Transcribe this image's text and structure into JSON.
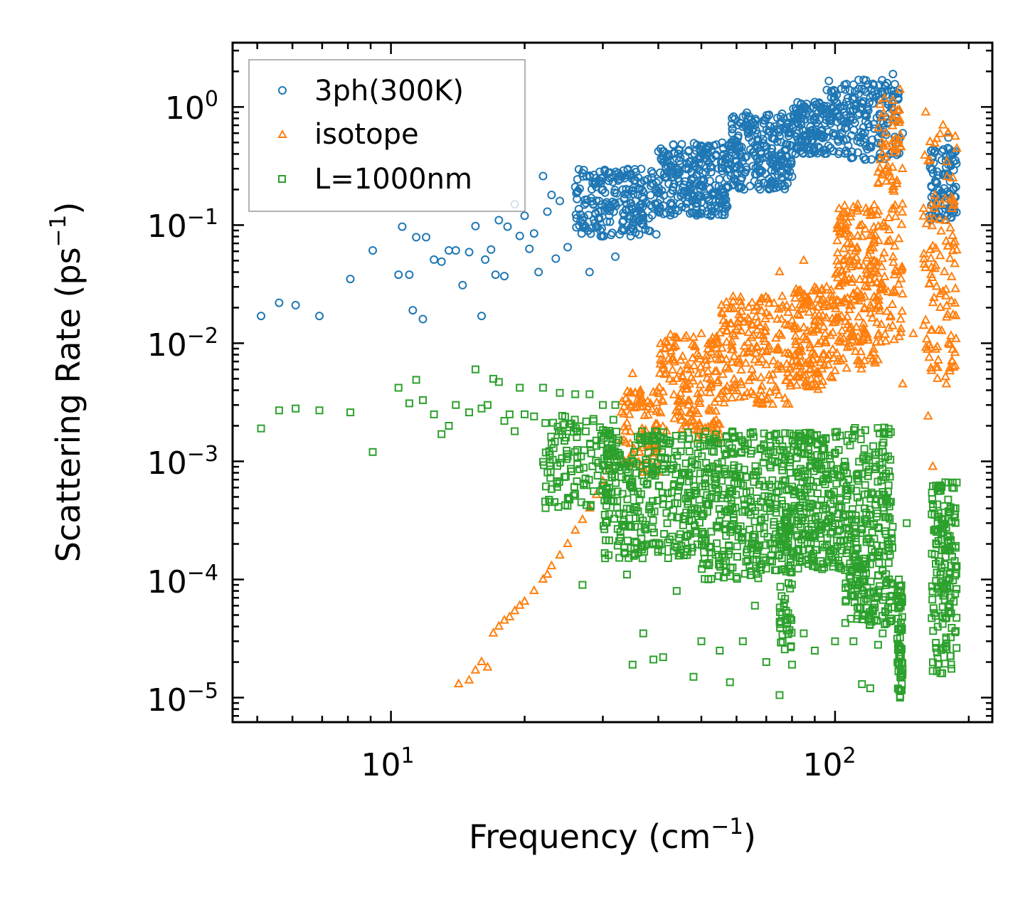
{
  "chart_data": {
    "type": "scatter",
    "xscale": "log",
    "yscale": "log",
    "xlabel": "Frequency (cm",
    "xlabel_sup": "−1",
    "xlabel_end": ")",
    "ylabel": "Scattering Rate (ps",
    "ylabel_sup": "−1",
    "ylabel_end": ")",
    "xlim": [
      4.4,
      226
    ],
    "ylim": [
      6.2e-06,
      3.5
    ],
    "x_ticks": [
      {
        "value": 10,
        "base": "10",
        "exp": "1"
      },
      {
        "value": 100,
        "base": "10",
        "exp": "2"
      }
    ],
    "y_ticks": [
      {
        "value": 1,
        "base": "10",
        "exp": "0"
      },
      {
        "value": 0.1,
        "base": "10",
        "exp": "−1"
      },
      {
        "value": 0.01,
        "base": "10",
        "exp": "−2"
      },
      {
        "value": 0.001,
        "base": "10",
        "exp": "−3"
      },
      {
        "value": 0.0001,
        "base": "10",
        "exp": "−4"
      },
      {
        "value": 1e-05,
        "base": "10",
        "exp": "−5"
      }
    ],
    "legend_position": "top-left",
    "series": [
      {
        "name": "3ph(300K)",
        "marker": "circle",
        "color": "#1f77b4",
        "points": [
          [
            5.1,
            0.017
          ],
          [
            5.6,
            0.022
          ],
          [
            6.1,
            0.021
          ],
          [
            6.9,
            0.017
          ],
          [
            8.1,
            0.035
          ],
          [
            9.1,
            0.061
          ],
          [
            10.4,
            0.038
          ],
          [
            10.6,
            0.097
          ],
          [
            11.0,
            0.038
          ],
          [
            11.2,
            0.019
          ],
          [
            11.4,
            0.079
          ],
          [
            11.8,
            0.016
          ],
          [
            12.0,
            0.079
          ],
          [
            12.5,
            0.051
          ],
          [
            13.0,
            0.049
          ],
          [
            13.5,
            0.061
          ],
          [
            14.0,
            0.061
          ],
          [
            14.5,
            0.031
          ],
          [
            15.0,
            0.059
          ],
          [
            15.5,
            0.098
          ],
          [
            16.0,
            0.017
          ],
          [
            16.3,
            0.051
          ],
          [
            16.8,
            0.062
          ],
          [
            17.2,
            0.038
          ],
          [
            17.5,
            0.11
          ],
          [
            18.0,
            0.037
          ],
          [
            18.3,
            0.097
          ],
          [
            19.0,
            0.15
          ],
          [
            19.5,
            0.081
          ],
          [
            20.0,
            0.12
          ],
          [
            20.5,
            0.063
          ],
          [
            21.0,
            0.085
          ],
          [
            21.5,
            0.04
          ],
          [
            22.0,
            0.26
          ],
          [
            22.5,
            0.13
          ],
          [
            23.0,
            0.18
          ],
          [
            23.5,
            0.052
          ],
          [
            24.0,
            0.16
          ],
          [
            25.0,
            0.065
          ],
          [
            26.0,
            0.21
          ],
          [
            27.0,
            0.11
          ],
          [
            28.0,
            0.04
          ],
          [
            29.0,
            0.25
          ],
          [
            30.0,
            0.2
          ],
          [
            31.0,
            0.12
          ],
          [
            32.0,
            0.054
          ],
          [
            33.0,
            0.26
          ],
          [
            34.0,
            0.15
          ],
          [
            35.0,
            0.1
          ],
          [
            36.0,
            0.18
          ],
          [
            37.0,
            0.11
          ],
          [
            38.0,
            0.09
          ],
          [
            39.0,
            0.22
          ],
          [
            40.0,
            0.42
          ],
          [
            42.0,
            0.28
          ],
          [
            44.0,
            0.3
          ],
          [
            46.0,
            0.38
          ],
          [
            48.0,
            0.25
          ],
          [
            50.0,
            0.47
          ],
          [
            52.0,
            0.16
          ],
          [
            54.0,
            0.48
          ],
          [
            56.0,
            0.45
          ],
          [
            58.0,
            0.3
          ],
          [
            60.0,
            0.31
          ],
          [
            62.0,
            0.68
          ],
          [
            64.0,
            0.55
          ],
          [
            66.0,
            0.7
          ],
          [
            68.0,
            0.42
          ],
          [
            70.0,
            0.8
          ],
          [
            72.0,
            0.36
          ],
          [
            74.0,
            0.65
          ],
          [
            76.0,
            0.25
          ],
          [
            78.0,
            0.48
          ],
          [
            80.0,
            0.7
          ],
          [
            82.0,
            0.56
          ],
          [
            85.0,
            0.57
          ],
          [
            88.0,
            0.68
          ],
          [
            90.0,
            1.1
          ],
          [
            93.0,
            0.95
          ],
          [
            96.0,
            0.88
          ],
          [
            100.0,
            0.92
          ],
          [
            103.0,
            0.78
          ],
          [
            106.0,
            0.85
          ],
          [
            110.0,
            0.95
          ],
          [
            113.0,
            0.55
          ],
          [
            116.0,
            1.4
          ],
          [
            120.0,
            1.2
          ],
          [
            125.0,
            1.3
          ],
          [
            130.0,
            1.5
          ],
          [
            135.0,
            1.9
          ],
          [
            140.0,
            0.55
          ],
          [
            142.0,
            0.6
          ],
          [
            165.0,
            0.21
          ],
          [
            170.0,
            0.2
          ],
          [
            175.0,
            0.18
          ],
          [
            180.0,
            0.55
          ],
          [
            185.0,
            0.15
          ]
        ],
        "clusters": [
          {
            "x": [
              26,
              40
            ],
            "y": [
              0.08,
              0.3
            ],
            "n": 220
          },
          {
            "x": [
              40,
              58
            ],
            "y": [
              0.12,
              0.5
            ],
            "n": 260
          },
          {
            "x": [
              58,
              80
            ],
            "y": [
              0.2,
              0.9
            ],
            "n": 240
          },
          {
            "x": [
              80,
              95
            ],
            "y": [
              0.4,
              1.1
            ],
            "n": 120
          },
          {
            "x": [
              95,
              140
            ],
            "y": [
              0.35,
              1.7
            ],
            "n": 220
          },
          {
            "x": [
              163,
              188
            ],
            "y": [
              0.11,
              0.45
            ],
            "n": 90
          }
        ]
      },
      {
        "name": "isotope",
        "marker": "triangle",
        "color": "#ff7f0e",
        "points": [
          [
            14.2,
            1.3e-05
          ],
          [
            15.0,
            1.4e-05
          ],
          [
            15.5,
            1.7e-05
          ],
          [
            16.0,
            2e-05
          ],
          [
            16.5,
            1.8e-05
          ],
          [
            17.0,
            3.5e-05
          ],
          [
            17.5,
            4e-05
          ],
          [
            18.0,
            4.5e-05
          ],
          [
            18.5,
            4.8e-05
          ],
          [
            19.0,
            5.4e-05
          ],
          [
            19.5,
            6e-05
          ],
          [
            20.0,
            6.5e-05
          ],
          [
            21.0,
            8e-05
          ],
          [
            22.0,
            0.0001
          ],
          [
            22.5,
            0.00011
          ],
          [
            23.0,
            0.00013
          ],
          [
            24.0,
            0.00016
          ],
          [
            25.0,
            0.0002
          ],
          [
            26.0,
            0.00026
          ],
          [
            27.0,
            0.00032
          ],
          [
            28.0,
            0.0004
          ],
          [
            29.0,
            0.00052
          ],
          [
            30.0,
            0.00068
          ],
          [
            31.0,
            0.00085
          ],
          [
            32.0,
            0.0011
          ],
          [
            33.0,
            0.0015
          ],
          [
            34.0,
            0.0021
          ],
          [
            35.0,
            0.0055
          ],
          [
            37.0,
            0.0013
          ],
          [
            39.0,
            0.0011
          ],
          [
            41.0,
            0.0032
          ],
          [
            44.0,
            0.005
          ],
          [
            47.0,
            0.0045
          ],
          [
            50.0,
            0.012
          ],
          [
            55.0,
            0.008
          ],
          [
            60.0,
            0.013
          ],
          [
            65.0,
            0.009
          ],
          [
            70.0,
            0.018
          ],
          [
            75.0,
            0.04
          ],
          [
            80.0,
            0.02
          ],
          [
            85.0,
            0.05
          ],
          [
            90.0,
            0.008
          ],
          [
            95.0,
            0.012
          ],
          [
            100.0,
            0.015
          ],
          [
            105.0,
            0.035
          ],
          [
            110.0,
            0.05
          ],
          [
            115.0,
            0.1
          ],
          [
            120.0,
            0.12
          ],
          [
            125.0,
            0.28
          ],
          [
            130.0,
            0.6
          ],
          [
            135.0,
            0.2
          ],
          [
            140.0,
            1.4
          ],
          [
            142.0,
            0.0045
          ],
          [
            150.0,
            0.012
          ],
          [
            160.0,
            0.9
          ],
          [
            162.0,
            0.0024
          ],
          [
            166.0,
            0.0009
          ],
          [
            170.0,
            0.005
          ],
          [
            175.0,
            0.7
          ],
          [
            178.0,
            0.0045
          ],
          [
            180.0,
            0.6
          ],
          [
            185.0,
            0.15
          ],
          [
            187.0,
            0.017
          ]
        ],
        "clusters": [
          {
            "x": [
              33,
              40
            ],
            "y": [
              0.0008,
              0.004
            ],
            "n": 80
          },
          {
            "x": [
              40,
              55
            ],
            "y": [
              0.0015,
              0.012
            ],
            "n": 160
          },
          {
            "x": [
              55,
              80
            ],
            "y": [
              0.003,
              0.025
            ],
            "n": 180
          },
          {
            "x": [
              80,
              100
            ],
            "y": [
              0.004,
              0.03
            ],
            "n": 150
          },
          {
            "x": [
              100,
              125
            ],
            "y": [
              0.006,
              0.15
            ],
            "n": 200
          },
          {
            "x": [
              125,
              142
            ],
            "y": [
              0.01,
              1.2
            ],
            "n": 120
          },
          {
            "x": [
              158,
              188
            ],
            "y": [
              0.005,
              0.6
            ],
            "n": 110
          }
        ]
      },
      {
        "name": "L=1000nm",
        "marker": "square",
        "color": "#2ca02c",
        "points": [
          [
            5.1,
            0.0019
          ],
          [
            5.6,
            0.0027
          ],
          [
            6.1,
            0.0028
          ],
          [
            6.9,
            0.0027
          ],
          [
            8.1,
            0.0026
          ],
          [
            9.1,
            0.0012
          ],
          [
            10.4,
            0.0042
          ],
          [
            11.0,
            0.0031
          ],
          [
            11.4,
            0.0049
          ],
          [
            11.8,
            0.0033
          ],
          [
            12.5,
            0.0025
          ],
          [
            13.0,
            0.0017
          ],
          [
            13.5,
            0.002
          ],
          [
            14.0,
            0.003
          ],
          [
            15.0,
            0.0026
          ],
          [
            15.5,
            0.006
          ],
          [
            16.0,
            0.0028
          ],
          [
            16.5,
            0.003
          ],
          [
            17.0,
            0.005
          ],
          [
            17.5,
            0.0047
          ],
          [
            18.0,
            0.0022
          ],
          [
            18.5,
            0.0025
          ],
          [
            19.0,
            0.0018
          ],
          [
            19.5,
            0.0042
          ],
          [
            20.0,
            0.0025
          ],
          [
            21.0,
            0.0024
          ],
          [
            22.0,
            0.0042
          ],
          [
            23.0,
            0.0014
          ],
          [
            24.0,
            0.0038
          ],
          [
            25.0,
            0.0011
          ],
          [
            26.0,
            0.0037
          ],
          [
            27.0,
            9e-05
          ],
          [
            28.0,
            0.0037
          ],
          [
            29.0,
            0.0015
          ],
          [
            30.0,
            0.003
          ],
          [
            31.0,
            0.0006
          ],
          [
            32.0,
            0.003
          ],
          [
            34.0,
            0.00011
          ],
          [
            35.0,
            1.9e-05
          ],
          [
            37.0,
            3.5e-05
          ],
          [
            39.0,
            2.1e-05
          ],
          [
            41.0,
            2.2e-05
          ],
          [
            44.0,
            8e-05
          ],
          [
            48.0,
            1.5e-05
          ],
          [
            50.0,
            3e-05
          ],
          [
            55.0,
            2.5e-05
          ],
          [
            58.0,
            1.35e-05
          ],
          [
            62.0,
            3e-05
          ],
          [
            66.0,
            6e-05
          ],
          [
            70.0,
            2e-05
          ],
          [
            75.0,
            1.05e-05
          ],
          [
            80.0,
            1.9e-05
          ],
          [
            85.0,
            3.5e-05
          ],
          [
            90.0,
            2.5e-05
          ],
          [
            100.0,
            3e-05
          ],
          [
            110.0,
            3e-05
          ],
          [
            115.0,
            1.3e-05
          ],
          [
            120.0,
            1.2e-05
          ],
          [
            125.0,
            2.8e-05
          ],
          [
            128.0,
            3.5e-05
          ],
          [
            132.0,
            0.0017
          ],
          [
            140.0,
            1e-05
          ],
          [
            145.0,
            0.0003
          ]
        ],
        "clusters": [
          {
            "x": [
              22,
              33
            ],
            "y": [
              0.0004,
              0.0025
            ],
            "n": 130
          },
          {
            "x": [
              30,
              50
            ],
            "y": [
              0.00015,
              0.0018
            ],
            "n": 320
          },
          {
            "x": [
              50,
              80
            ],
            "y": [
              0.0001,
              0.0018
            ],
            "n": 380
          },
          {
            "x": [
              75,
              80
            ],
            "y": [
              2.5e-05,
              0.0003
            ],
            "n": 50
          },
          {
            "x": [
              80,
              105
            ],
            "y": [
              0.00012,
              0.0018
            ],
            "n": 260
          },
          {
            "x": [
              105,
              135
            ],
            "y": [
              4e-05,
              0.002
            ],
            "n": 300
          },
          {
            "x": [
              138,
              142
            ],
            "y": [
              1e-05,
              0.0001
            ],
            "n": 70
          },
          {
            "x": [
              165,
              188
            ],
            "y": [
              1.5e-05,
              0.0007
            ],
            "n": 170
          }
        ]
      }
    ]
  }
}
